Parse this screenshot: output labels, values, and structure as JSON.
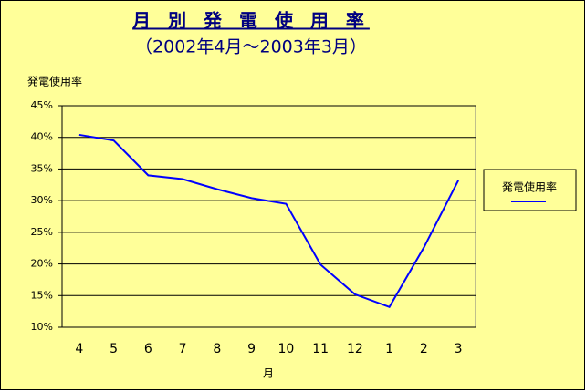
{
  "chart_data": {
    "type": "line",
    "title": "月 別 発 電 使 用 率",
    "subtitle": "（2002年4月～2003年3月）",
    "y_label": "発電使用率",
    "x_label": "月",
    "categories": [
      "4",
      "5",
      "6",
      "7",
      "8",
      "9",
      "10",
      "11",
      "12",
      "1",
      "2",
      "3"
    ],
    "series": [
      {
        "name": "発電使用率",
        "color": "#0000ff",
        "values": [
          40.4,
          39.5,
          34,
          33.4,
          31.8,
          30.4,
          29.5,
          19.9,
          15.2,
          13.2,
          22.6,
          33.2
        ]
      }
    ],
    "ylim": [
      10,
      45
    ],
    "yticks": [
      {
        "value": 10,
        "label": "10%"
      },
      {
        "value": 15,
        "label": "15%"
      },
      {
        "value": 20,
        "label": "20%"
      },
      {
        "value": 25,
        "label": "25%"
      },
      {
        "value": 30,
        "label": "30%"
      },
      {
        "value": 35,
        "label": "35%"
      },
      {
        "value": 40,
        "label": "40%"
      },
      {
        "value": 45,
        "label": "45%"
      }
    ],
    "grid": true,
    "legend": "right"
  }
}
